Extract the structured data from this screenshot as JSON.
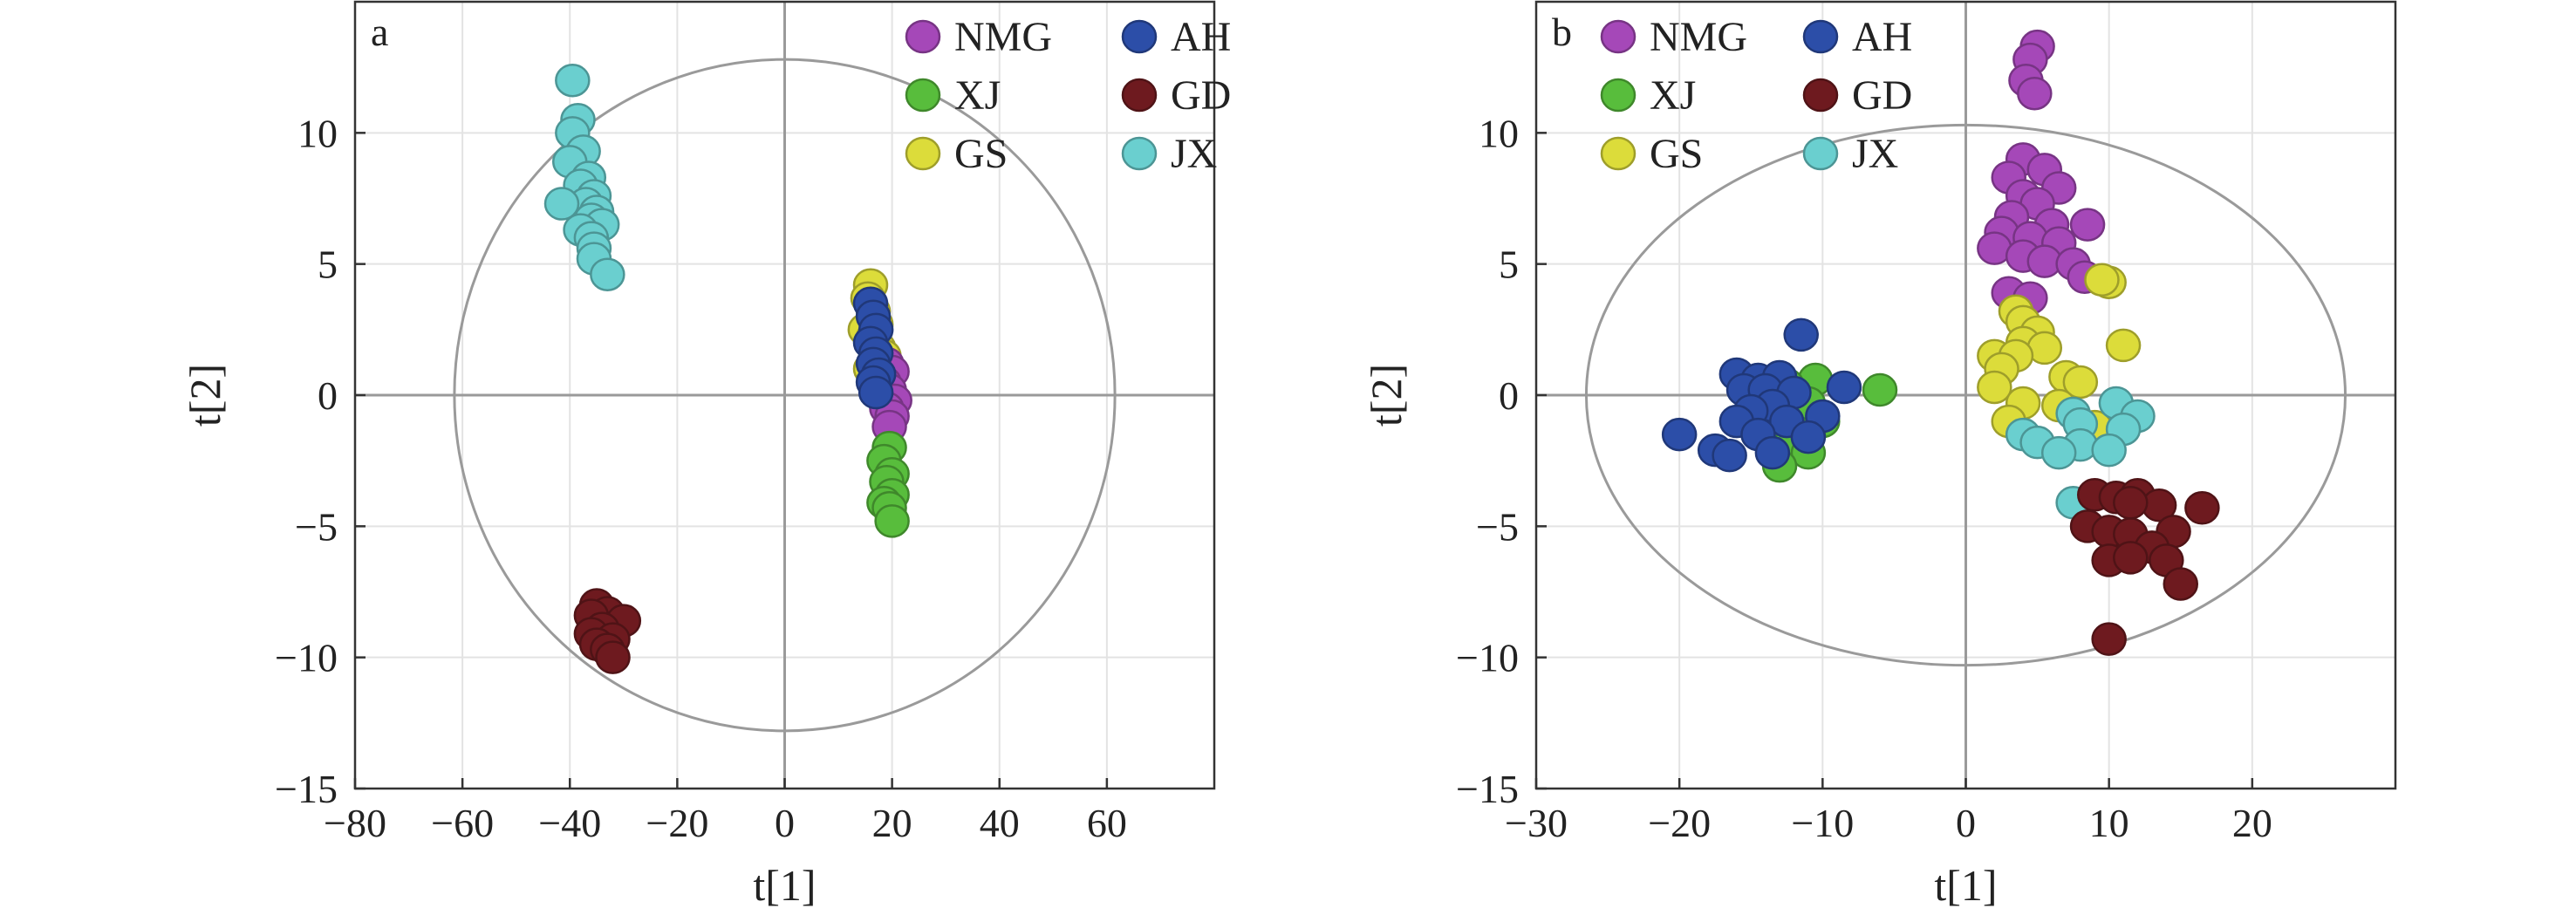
{
  "colors": {
    "NMG": "#a548b8",
    "XJ": "#58bd3c",
    "GS": "#dcdc3a",
    "AH": "#2c4ea8",
    "GD": "#6e1a1f",
    "JX": "#6acfcf",
    "frame": "#333333",
    "grid": "#e3e3e3",
    "ellipse": "#9a9a9a",
    "axis_zero": "#9a9a9a"
  },
  "chart_data": [
    {
      "type": "scatter",
      "panel_label": "a",
      "xlabel": "t[1]",
      "ylabel": "t[2]",
      "xlim": [
        -80,
        80
      ],
      "ylim": [
        -15,
        15
      ],
      "xticks": [
        -80,
        -60,
        -40,
        -20,
        0,
        20,
        40,
        60
      ],
      "yticks": [
        -15,
        -10,
        -5,
        0,
        5,
        10
      ],
      "tick_labels_x": [
        "−80",
        "−60",
        "−40",
        "−20",
        "0",
        "20",
        "40",
        "60"
      ],
      "tick_labels_y": [
        "−15",
        "−10",
        "−5",
        "0",
        "5",
        "10"
      ],
      "grid": true,
      "ellipse": {
        "rx": 61.5,
        "ry": 12.8
      },
      "legend": {
        "placement": "top-right",
        "columns": 2,
        "entries": [
          {
            "name": "NMG",
            "label": "NMG"
          },
          {
            "name": "AH",
            "label": "AH"
          },
          {
            "name": "XJ",
            "label": "XJ"
          },
          {
            "name": "GD",
            "label": "GD"
          },
          {
            "name": "GS",
            "label": "GS"
          },
          {
            "name": "JX",
            "label": "JX"
          }
        ]
      },
      "series": [
        {
          "name": "JX",
          "points": [
            [
              -39.5,
              12.0
            ],
            [
              -38.5,
              10.5
            ],
            [
              -39.5,
              10.0
            ],
            [
              -37.5,
              9.3
            ],
            [
              -40,
              8.9
            ],
            [
              -36.5,
              8.3
            ],
            [
              -38,
              8.0
            ],
            [
              -35.5,
              7.6
            ],
            [
              -37,
              7.3
            ],
            [
              -41.5,
              7.3
            ],
            [
              -35,
              7.0
            ],
            [
              -36,
              6.7
            ],
            [
              -34,
              6.5
            ],
            [
              -38,
              6.3
            ],
            [
              -36,
              6.0
            ],
            [
              -35.5,
              5.6
            ],
            [
              -35.5,
              5.2
            ],
            [
              -33,
              4.6
            ]
          ]
        },
        {
          "name": "GS",
          "points": [
            [
              16,
              4.2
            ],
            [
              15.5,
              3.7
            ],
            [
              16.5,
              3.2
            ],
            [
              17,
              2.7
            ],
            [
              15,
              2.5
            ],
            [
              16.5,
              2.2
            ],
            [
              17.5,
              1.8
            ],
            [
              18.5,
              1.5
            ],
            [
              16,
              1.0
            ]
          ]
        },
        {
          "name": "NMG",
          "points": [
            [
              19,
              1.2
            ],
            [
              20,
              0.9
            ],
            [
              18.5,
              0.5
            ],
            [
              19.5,
              0.2
            ],
            [
              20.5,
              -0.2
            ],
            [
              19,
              -0.5
            ],
            [
              20,
              -0.8
            ],
            [
              19.5,
              -1.2
            ]
          ]
        },
        {
          "name": "AH",
          "points": [
            [
              16,
              3.5
            ],
            [
              16.5,
              3.0
            ],
            [
              17,
              2.5
            ],
            [
              16,
              2.0
            ],
            [
              17,
              1.6
            ],
            [
              16.5,
              1.2
            ],
            [
              17.5,
              0.8
            ],
            [
              16.5,
              0.5
            ],
            [
              17,
              0.1
            ]
          ]
        },
        {
          "name": "XJ",
          "points": [
            [
              19.5,
              -2.0
            ],
            [
              18.5,
              -2.5
            ],
            [
              20,
              -3.0
            ],
            [
              19,
              -3.3
            ],
            [
              20,
              -3.8
            ],
            [
              18.5,
              -4.1
            ],
            [
              19.5,
              -4.3
            ],
            [
              20,
              -4.8
            ]
          ]
        },
        {
          "name": "GD",
          "points": [
            [
              -35,
              -8.0
            ],
            [
              -33,
              -8.3
            ],
            [
              -36,
              -8.4
            ],
            [
              -30,
              -8.6
            ],
            [
              -34,
              -8.9
            ],
            [
              -36,
              -9.1
            ],
            [
              -32,
              -9.3
            ],
            [
              -35,
              -9.5
            ],
            [
              -33,
              -9.7
            ],
            [
              -32,
              -10.0
            ]
          ]
        }
      ]
    },
    {
      "type": "scatter",
      "panel_label": "b",
      "xlabel": "t[1]",
      "ylabel": "t[2]",
      "xlim": [
        -30,
        30
      ],
      "ylim": [
        -15,
        15
      ],
      "xticks": [
        -30,
        -20,
        -10,
        0,
        10,
        20
      ],
      "yticks": [
        -15,
        -10,
        -5,
        0,
        5,
        10
      ],
      "tick_labels_x": [
        "−30",
        "−20",
        "−10",
        "0",
        "10",
        "20"
      ],
      "tick_labels_y": [
        "−15",
        "−10",
        "−5",
        "0",
        "5",
        "10"
      ],
      "grid": true,
      "ellipse": {
        "rx": 26.5,
        "ry": 10.3
      },
      "legend": {
        "placement": "top-left",
        "columns": 2,
        "entries": [
          {
            "name": "NMG",
            "label": "NMG"
          },
          {
            "name": "AH",
            "label": "AH"
          },
          {
            "name": "XJ",
            "label": "XJ"
          },
          {
            "name": "GD",
            "label": "GD"
          },
          {
            "name": "GS",
            "label": "GS"
          },
          {
            "name": "JX",
            "label": "JX"
          }
        ]
      },
      "series": [
        {
          "name": "NMG",
          "points": [
            [
              5,
              13.3
            ],
            [
              4.5,
              12.8
            ],
            [
              4.2,
              12.0
            ],
            [
              4.8,
              11.5
            ],
            [
              4,
              9.0
            ],
            [
              5.5,
              8.6
            ],
            [
              3,
              8.3
            ],
            [
              6.5,
              7.9
            ],
            [
              4,
              7.6
            ],
            [
              5,
              7.3
            ],
            [
              3.2,
              6.8
            ],
            [
              6,
              6.5
            ],
            [
              8.5,
              6.5
            ],
            [
              2.5,
              6.2
            ],
            [
              4.5,
              6.0
            ],
            [
              6.5,
              5.8
            ],
            [
              2,
              5.6
            ],
            [
              4,
              5.3
            ],
            [
              5.5,
              5.1
            ],
            [
              7.5,
              5.0
            ],
            [
              8.3,
              4.5
            ],
            [
              3,
              3.9
            ],
            [
              4.5,
              3.7
            ]
          ]
        },
        {
          "name": "GS",
          "points": [
            [
              10,
              4.3
            ],
            [
              9.5,
              4.4
            ],
            [
              3.5,
              3.2
            ],
            [
              4,
              2.8
            ],
            [
              5,
              2.4
            ],
            [
              4,
              2.0
            ],
            [
              5.5,
              1.8
            ],
            [
              11,
              1.9
            ],
            [
              2,
              1.5
            ],
            [
              3.5,
              1.5
            ],
            [
              2.5,
              1.0
            ],
            [
              7,
              0.7
            ],
            [
              8,
              0.5
            ],
            [
              2,
              0.3
            ],
            [
              4,
              -0.3
            ],
            [
              6.5,
              -0.4
            ],
            [
              3,
              -1.0
            ],
            [
              9,
              -1.2
            ]
          ]
        },
        {
          "name": "JX",
          "points": [
            [
              7.5,
              -0.7
            ],
            [
              10.5,
              -0.3
            ],
            [
              12,
              -0.8
            ],
            [
              8,
              -1.1
            ],
            [
              11,
              -1.3
            ],
            [
              4,
              -1.5
            ],
            [
              5,
              -1.8
            ],
            [
              8,
              -1.9
            ],
            [
              10,
              -2.1
            ],
            [
              6.5,
              -2.2
            ],
            [
              7.5,
              -4.1
            ]
          ]
        },
        {
          "name": "GD",
          "points": [
            [
              9,
              -3.8
            ],
            [
              10.5,
              -3.9
            ],
            [
              12,
              -3.8
            ],
            [
              13.5,
              -4.2
            ],
            [
              16.5,
              -4.3
            ],
            [
              11.5,
              -4.1
            ],
            [
              8.5,
              -5.0
            ],
            [
              10,
              -5.2
            ],
            [
              11.5,
              -5.3
            ],
            [
              14.5,
              -5.2
            ],
            [
              13,
              -5.8
            ],
            [
              10,
              -6.3
            ],
            [
              11.5,
              -6.2
            ],
            [
              14,
              -6.3
            ],
            [
              15,
              -7.2
            ],
            [
              10,
              -9.3
            ]
          ]
        },
        {
          "name": "XJ",
          "points": [
            [
              -10.5,
              0.6
            ],
            [
              -12.5,
              0.4
            ],
            [
              -6,
              0.2
            ],
            [
              -11,
              -0.3
            ],
            [
              -13,
              -0.6
            ],
            [
              -10,
              -1.0
            ],
            [
              -11,
              -1.5
            ],
            [
              -12.5,
              -2.0
            ],
            [
              -11,
              -2.2
            ],
            [
              -13,
              -2.7
            ]
          ]
        },
        {
          "name": "AH",
          "points": [
            [
              -11.5,
              2.3
            ],
            [
              -16,
              0.8
            ],
            [
              -14.5,
              0.6
            ],
            [
              -13,
              0.7
            ],
            [
              -8.5,
              0.3
            ],
            [
              -15.5,
              0.2
            ],
            [
              -14,
              0.2
            ],
            [
              -12,
              0.1
            ],
            [
              -13.5,
              -0.4
            ],
            [
              -15,
              -0.6
            ],
            [
              -16,
              -1.0
            ],
            [
              -12.5,
              -1.0
            ],
            [
              -10,
              -0.8
            ],
            [
              -20,
              -1.5
            ],
            [
              -14.5,
              -1.5
            ],
            [
              -11,
              -1.6
            ],
            [
              -17.5,
              -2.1
            ],
            [
              -16.5,
              -2.3
            ],
            [
              -13.5,
              -2.2
            ]
          ]
        }
      ]
    }
  ]
}
